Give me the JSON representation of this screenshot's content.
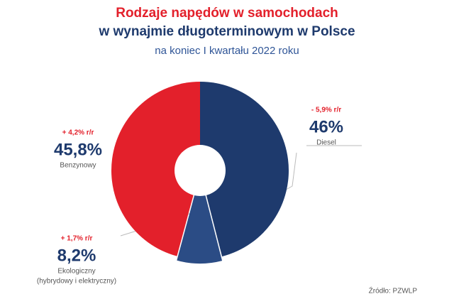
{
  "chart_data": {
    "type": "pie",
    "title": [
      "Rodzaje napędów w samochodach",
      "w wynajmie długoterminowym w Polsce"
    ],
    "subtitle": "na koniec I kwartału 2022 roku",
    "categories": [
      "Diesel",
      "Ekologiczny",
      "Benzynowy"
    ],
    "values": [
      46,
      8.2,
      45.8
    ],
    "value_labels": [
      "46%",
      "8,2%",
      "45,8%"
    ],
    "changes": [
      "- 5,9% r/r",
      "+ 1,7% r/r",
      "+ 4,2% r/r"
    ],
    "colors": [
      "#1e3a6d",
      "#2b4c85",
      "#e3202b"
    ],
    "annotations": [
      "(hybrydowy i elektryczny)"
    ],
    "source": "Źródło: PZWLP"
  }
}
